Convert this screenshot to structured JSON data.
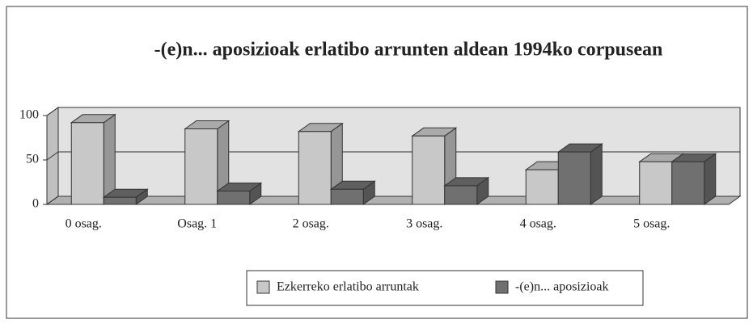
{
  "chart_data": {
    "type": "bar3d",
    "title": "-(e)n... aposizioak  erlatibo arrunten aldean 1994ko corpusean",
    "categories": [
      "0 osag.",
      "Osag. 1",
      "2 osag.",
      "3 osag.",
      "4 osag.",
      "5 osag."
    ],
    "series": [
      {
        "name": "Ezkerreko erlatibo arruntak",
        "color": "#c8c8c8",
        "values": [
          92,
          85,
          82,
          77,
          39,
          48
        ]
      },
      {
        "name": "-(e)n... aposizioak",
        "color": "#707070",
        "values": [
          8,
          15,
          17,
          21,
          59,
          48
        ]
      }
    ],
    "ylim": [
      0,
      100
    ],
    "yticks": [
      0,
      50,
      100
    ],
    "grid": true,
    "legend": "bottom"
  }
}
